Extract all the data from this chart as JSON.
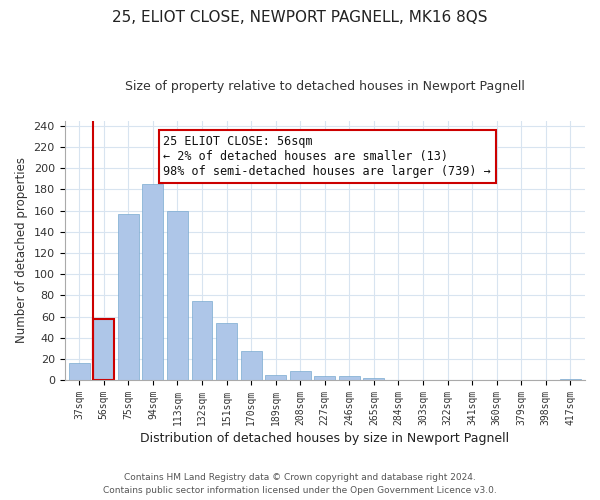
{
  "title": "25, ELIOT CLOSE, NEWPORT PAGNELL, MK16 8QS",
  "subtitle": "Size of property relative to detached houses in Newport Pagnell",
  "xlabel": "Distribution of detached houses by size in Newport Pagnell",
  "ylabel": "Number of detached properties",
  "bar_labels": [
    "37sqm",
    "56sqm",
    "75sqm",
    "94sqm",
    "113sqm",
    "132sqm",
    "151sqm",
    "170sqm",
    "189sqm",
    "208sqm",
    "227sqm",
    "246sqm",
    "265sqm",
    "284sqm",
    "303sqm",
    "322sqm",
    "341sqm",
    "360sqm",
    "379sqm",
    "398sqm",
    "417sqm"
  ],
  "bar_values": [
    16,
    58,
    157,
    185,
    160,
    75,
    54,
    27,
    5,
    9,
    4,
    4,
    2,
    0,
    0,
    0,
    0,
    0,
    0,
    0,
    1
  ],
  "bar_color": "#aec6e8",
  "bar_edge_color": "#7aaad0",
  "highlight_bar_index": 1,
  "highlight_bar_edge_color": "#cc0000",
  "ylim": [
    0,
    245
  ],
  "yticks": [
    0,
    20,
    40,
    60,
    80,
    100,
    120,
    140,
    160,
    180,
    200,
    220,
    240
  ],
  "annotation_title": "25 ELIOT CLOSE: 56sqm",
  "annotation_line1": "← 2% of detached houses are smaller (13)",
  "annotation_line2": "98% of semi-detached houses are larger (739) →",
  "annotation_box_edge_color": "#cc0000",
  "footer_line1": "Contains HM Land Registry data © Crown copyright and database right 2024.",
  "footer_line2": "Contains public sector information licensed under the Open Government Licence v3.0.",
  "background_color": "#ffffff",
  "grid_color": "#d8e4f0"
}
